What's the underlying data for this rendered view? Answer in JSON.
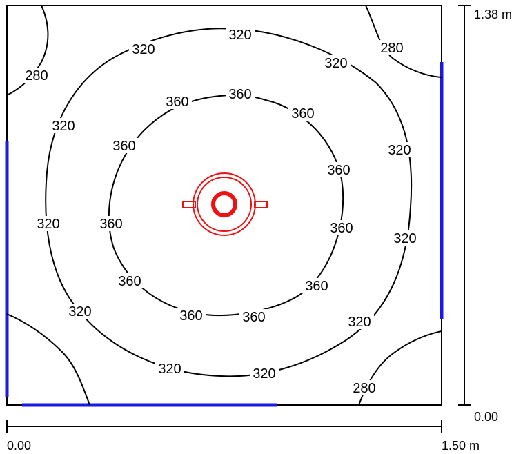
{
  "room": {
    "width_label": "1.50 m",
    "depth_label": "1.38 m",
    "x_origin_label": "0.00",
    "y_origin_label": "0.00"
  },
  "colors": {
    "contour": "#000000",
    "luminaire": "#ee1111",
    "window": "#1a1ae6",
    "frame": "#000000"
  },
  "isolines": {
    "level_280": "280",
    "level_320": "320",
    "level_360": "360"
  },
  "luminaire": {
    "icon": "downlight-luminaire-icon"
  }
}
